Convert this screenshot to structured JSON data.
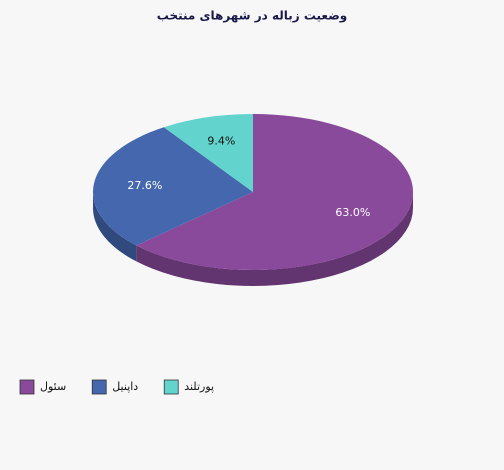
{
  "chart_data": {
    "type": "pie",
    "title": "وضعیت زباله در شهرهای منتخب",
    "categories": [
      "سئول",
      "داپنیل",
      "پورتلند"
    ],
    "values": [
      63.0,
      27.6,
      9.4
    ],
    "value_labels": [
      "63.0%",
      "27.6%",
      "9.4%"
    ],
    "colors": [
      "#8a4a9c",
      "#4467ad",
      "#63d3cd"
    ],
    "legend": "bottom-left"
  }
}
